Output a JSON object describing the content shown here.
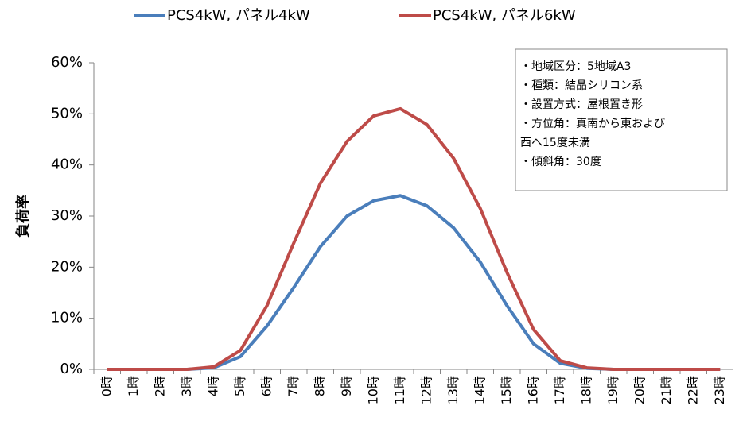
{
  "chart_data": {
    "type": "line",
    "y_label": "負荷率",
    "categories": [
      "0時",
      "1時",
      "2時",
      "3時",
      "4時",
      "5時",
      "6時",
      "7時",
      "8時",
      "9時",
      "10時",
      "11時",
      "12時",
      "13時",
      "14時",
      "15時",
      "16時",
      "17時",
      "18時",
      "19時",
      "20時",
      "21時",
      "22時",
      "23時"
    ],
    "series": [
      {
        "name": "PCS4kW, パネル4kW",
        "color": "#4a7ebb",
        "values": [
          0,
          0,
          0,
          0,
          0.3,
          2.5,
          8.5,
          16,
          24,
          30,
          33,
          34,
          32,
          27.7,
          21,
          12.5,
          5,
          1.2,
          0.2,
          0,
          0,
          0,
          0,
          0
        ]
      },
      {
        "name": "PCS4kW, パネル6kW",
        "color": "#be4b48",
        "values": [
          0,
          0,
          0,
          0,
          0.5,
          3.7,
          12.5,
          24.7,
          36.4,
          44.6,
          49.6,
          51,
          47.9,
          41.3,
          31.5,
          19,
          7.8,
          1.7,
          0.3,
          0,
          0,
          0,
          0,
          0
        ]
      }
    ],
    "ylim": [
      0,
      60
    ],
    "yticks": [
      {
        "value": 0,
        "label": "0%"
      },
      {
        "value": 10,
        "label": "10%"
      },
      {
        "value": 20,
        "label": "20%"
      },
      {
        "value": 30,
        "label": "30%"
      },
      {
        "value": 40,
        "label": "40%"
      },
      {
        "value": 50,
        "label": "50%"
      },
      {
        "value": 60,
        "label": "60%"
      }
    ],
    "grid": false,
    "legend": "top",
    "annotation": [
      "・地域区分：5地域A3",
      "・種類：結晶シリコン系",
      "・設置方式：屋根置き形",
      "・方位角：真南から東および",
      "西へ15度未満",
      "・傾斜角：30度"
    ]
  }
}
